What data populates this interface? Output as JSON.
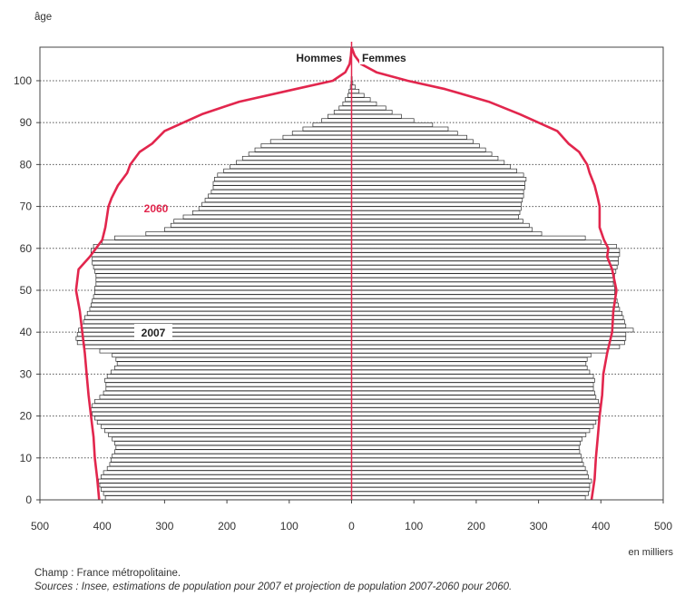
{
  "chart_data": {
    "type": "bar",
    "subtype": "population-pyramid",
    "ylabel": "âge",
    "xlabel": "en milliers",
    "left_label": "Hommes",
    "right_label": "Femmes",
    "xlim": [
      -500,
      500
    ],
    "ylim": [
      0,
      108
    ],
    "x_ticks": [
      500,
      400,
      300,
      200,
      100,
      0,
      100,
      200,
      300,
      400,
      500
    ],
    "y_ticks": [
      0,
      10,
      20,
      30,
      40,
      50,
      60,
      70,
      80,
      90,
      100
    ],
    "grid": "dotted-horizontal",
    "series": [
      {
        "name": "2007",
        "kind": "bars",
        "ages": [
          0,
          1,
          2,
          3,
          4,
          5,
          6,
          7,
          8,
          9,
          10,
          11,
          12,
          13,
          14,
          15,
          16,
          17,
          18,
          19,
          20,
          21,
          22,
          23,
          24,
          25,
          26,
          27,
          28,
          29,
          30,
          31,
          32,
          33,
          34,
          35,
          36,
          37,
          38,
          39,
          40,
          41,
          42,
          43,
          44,
          45,
          46,
          47,
          48,
          49,
          50,
          51,
          52,
          53,
          54,
          55,
          56,
          57,
          58,
          59,
          60,
          61,
          62,
          63,
          64,
          65,
          66,
          67,
          68,
          69,
          70,
          71,
          72,
          73,
          74,
          75,
          76,
          77,
          78,
          79,
          80,
          81,
          82,
          83,
          84,
          85,
          86,
          87,
          88,
          89,
          90,
          91,
          92,
          93,
          94,
          95,
          96,
          97,
          98,
          99,
          100
        ],
        "hommes": [
          395,
          398,
          402,
          404,
          406,
          402,
          398,
          392,
          388,
          386,
          384,
          380,
          378,
          380,
          384,
          390,
          396,
          402,
          408,
          412,
          416,
          418,
          416,
          412,
          404,
          398,
          394,
          394,
          396,
          392,
          386,
          380,
          376,
          378,
          384,
          404,
          428,
          440,
          442,
          440,
          438,
          434,
          430,
          428,
          424,
          420,
          418,
          416,
          414,
          412,
          412,
          410,
          410,
          410,
          412,
          414,
          416,
          416,
          418,
          418,
          414,
          400,
          380,
          330,
          300,
          290,
          285,
          270,
          255,
          245,
          240,
          235,
          230,
          225,
          222,
          222,
          220,
          215,
          205,
          195,
          185,
          175,
          165,
          155,
          145,
          130,
          110,
          95,
          78,
          62,
          48,
          38,
          28,
          20,
          14,
          10,
          6,
          4,
          2,
          1,
          0.5
        ],
        "femmes": [
          375,
          380,
          382,
          382,
          385,
          380,
          378,
          375,
          372,
          370,
          368,
          366,
          365,
          367,
          370,
          376,
          382,
          388,
          392,
          396,
          398,
          400,
          398,
          396,
          392,
          390,
          388,
          388,
          390,
          388,
          382,
          378,
          376,
          378,
          384,
          410,
          430,
          438,
          440,
          440,
          452,
          440,
          438,
          436,
          434,
          430,
          428,
          426,
          424,
          422,
          422,
          420,
          420,
          422,
          424,
          426,
          428,
          428,
          430,
          430,
          425,
          400,
          375,
          305,
          290,
          285,
          275,
          268,
          270,
          272,
          272,
          274,
          276,
          276,
          278,
          278,
          280,
          276,
          265,
          255,
          245,
          235,
          225,
          215,
          205,
          195,
          185,
          170,
          155,
          130,
          100,
          80,
          65,
          55,
          40,
          30,
          20,
          12,
          6,
          2,
          1
        ],
        "label": "2007"
      },
      {
        "name": "2060",
        "kind": "line",
        "color": "#e2264d",
        "ages": [
          0,
          5,
          10,
          15,
          20,
          25,
          30,
          35,
          40,
          45,
          50,
          55,
          58,
          60,
          62,
          65,
          70,
          72,
          75,
          78,
          80,
          83,
          85,
          88,
          90,
          92,
          95,
          98,
          100,
          102,
          104,
          106,
          108
        ],
        "hommes": [
          405,
          408,
          412,
          414,
          418,
          422,
          425,
          428,
          432,
          436,
          442,
          438,
          420,
          410,
          400,
          395,
          390,
          385,
          375,
          360,
          355,
          340,
          320,
          300,
          270,
          240,
          180,
          90,
          30,
          10,
          3,
          1,
          0
        ],
        "femmes": [
          385,
          390,
          392,
          395,
          398,
          402,
          404,
          410,
          418,
          420,
          425,
          418,
          410,
          412,
          405,
          398,
          398,
          395,
          390,
          382,
          378,
          365,
          348,
          330,
          300,
          270,
          220,
          150,
          90,
          40,
          15,
          5,
          0
        ],
        "label": "2060"
      }
    ]
  },
  "notes": {
    "champ": "Champ : France métropolitaine.",
    "sources": "Sources : Insee, estimations de population pour 2007 et projection de population 2007-2060 pour 2060."
  }
}
